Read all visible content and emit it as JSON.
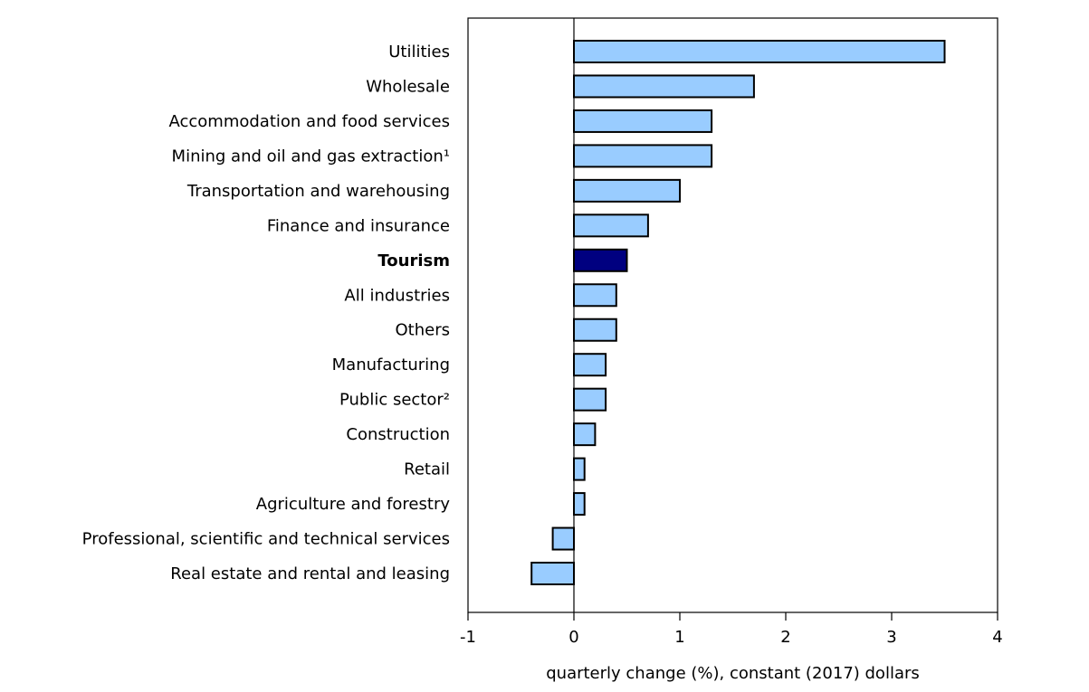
{
  "chart_data": {
    "type": "bar",
    "orientation": "horizontal",
    "title": "",
    "xlabel": "quarterly change (%), constant (2017) dollars",
    "ylabel": "",
    "xlim": [
      -1,
      4
    ],
    "xticks": [
      -1,
      0,
      1,
      2,
      3,
      4
    ],
    "grid": false,
    "categories": [
      "Utilities",
      "Wholesale",
      "Accommodation and food services",
      "Mining and oil and gas extraction¹",
      "Transportation and warehousing",
      "Finance and insurance",
      "Tourism",
      "All industries",
      "Others",
      "Manufacturing",
      "Public sector²",
      "Construction",
      "Retail",
      "Agriculture and forestry",
      "Professional, scientific and technical services",
      "Real estate and rental and leasing"
    ],
    "values": [
      3.5,
      1.7,
      1.3,
      1.3,
      1.0,
      0.7,
      0.5,
      0.4,
      0.4,
      0.3,
      0.3,
      0.2,
      0.1,
      0.1,
      -0.2,
      -0.4
    ],
    "highlight": "Tourism",
    "colors": {
      "bar": "#99CCFF",
      "highlight": "#000080",
      "outline": "#000000"
    }
  }
}
